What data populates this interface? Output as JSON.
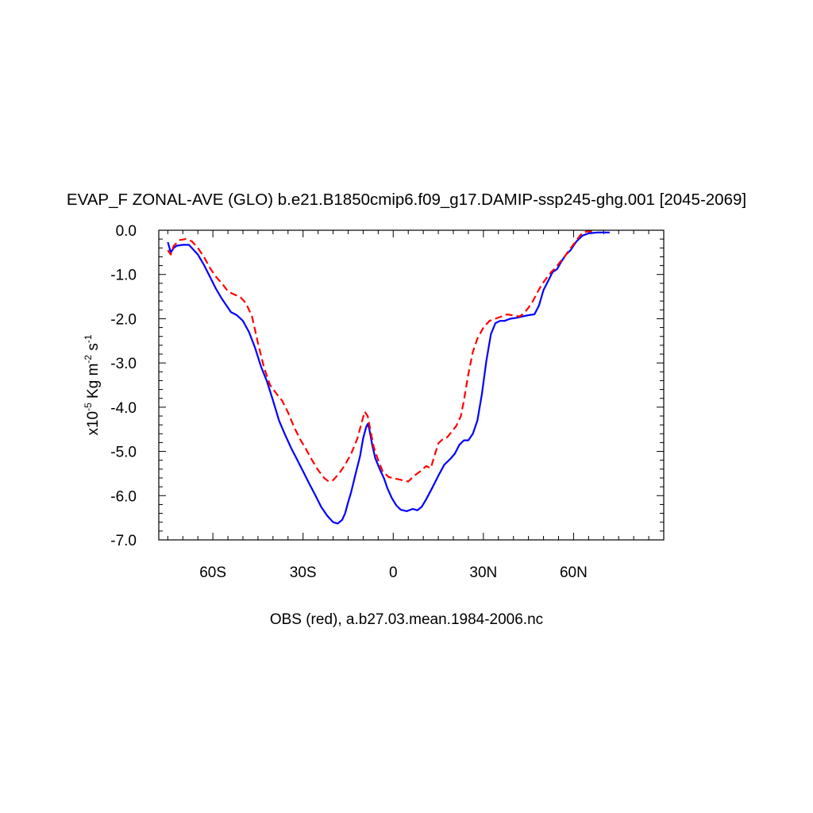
{
  "chart_data": {
    "type": "line",
    "title": "EVAP_F ZONAL-AVE (GLO) b.e21.B1850cmip6.f09_g17.DAMIP-ssp245-ghg.001 [2045-2069]",
    "ylabel": {
      "prefix": "x10",
      "exp1": "-5",
      "unit1": " Kg m",
      "exp2": "-2",
      "unit2": " s",
      "exp3": "-1"
    },
    "xlabel": "OBS (red), a.b27.03.mean.1984-2006.nc",
    "xlim": [
      -78,
      90
    ],
    "ylim": [
      -7.0,
      0.0
    ],
    "xticks": [
      {
        "value": -60,
        "label": "60S"
      },
      {
        "value": -30,
        "label": "30S"
      },
      {
        "value": 0,
        "label": "0"
      },
      {
        "value": 30,
        "label": "30N"
      },
      {
        "value": 60,
        "label": "60N"
      }
    ],
    "yticks": [
      {
        "value": 0.0,
        "label": "0.0"
      },
      {
        "value": -1.0,
        "label": "-1.0"
      },
      {
        "value": -2.0,
        "label": "-2.0"
      },
      {
        "value": -3.0,
        "label": "-3.0"
      },
      {
        "value": -4.0,
        "label": "-4.0"
      },
      {
        "value": -5.0,
        "label": "-5.0"
      },
      {
        "value": -6.0,
        "label": "-6.0"
      },
      {
        "value": -7.0,
        "label": "-7.0"
      }
    ],
    "series": [
      {
        "color": "#0000ff",
        "dash": "solid",
        "points": [
          [
            -75,
            -0.27
          ],
          [
            -74,
            -0.5
          ],
          [
            -73,
            -0.4
          ],
          [
            -72,
            -0.35
          ],
          [
            -70,
            -0.33
          ],
          [
            -68,
            -0.33
          ],
          [
            -67,
            -0.4
          ],
          [
            -65,
            -0.55
          ],
          [
            -63,
            -0.78
          ],
          [
            -61,
            -1.05
          ],
          [
            -59,
            -1.32
          ],
          [
            -57,
            -1.55
          ],
          [
            -55,
            -1.75
          ],
          [
            -54,
            -1.85
          ],
          [
            -52,
            -1.92
          ],
          [
            -50,
            -2.05
          ],
          [
            -48,
            -2.3
          ],
          [
            -46,
            -2.65
          ],
          [
            -44,
            -3.08
          ],
          [
            -42,
            -3.42
          ],
          [
            -40,
            -3.85
          ],
          [
            -38,
            -4.3
          ],
          [
            -36,
            -4.62
          ],
          [
            -34,
            -4.92
          ],
          [
            -32,
            -5.18
          ],
          [
            -30,
            -5.45
          ],
          [
            -28,
            -5.72
          ],
          [
            -26,
            -5.98
          ],
          [
            -24,
            -6.25
          ],
          [
            -22,
            -6.45
          ],
          [
            -20,
            -6.6
          ],
          [
            -18.5,
            -6.63
          ],
          [
            -17,
            -6.55
          ],
          [
            -16,
            -6.4
          ],
          [
            -15,
            -6.15
          ],
          [
            -14,
            -5.92
          ],
          [
            -12.5,
            -5.5
          ],
          [
            -11,
            -5.1
          ],
          [
            -10,
            -4.7
          ],
          [
            -9,
            -4.45
          ],
          [
            -8.5,
            -4.38
          ],
          [
            -8,
            -4.48
          ],
          [
            -7,
            -4.85
          ],
          [
            -6,
            -5.15
          ],
          [
            -4.5,
            -5.4
          ],
          [
            -3,
            -5.62
          ],
          [
            -2,
            -5.82
          ],
          [
            -0.5,
            -6.05
          ],
          [
            1,
            -6.22
          ],
          [
            2.5,
            -6.32
          ],
          [
            4.5,
            -6.35
          ],
          [
            6.5,
            -6.3
          ],
          [
            8,
            -6.33
          ],
          [
            9.5,
            -6.25
          ],
          [
            11,
            -6.08
          ],
          [
            13,
            -5.82
          ],
          [
            15,
            -5.55
          ],
          [
            17,
            -5.3
          ],
          [
            19,
            -5.17
          ],
          [
            20.5,
            -5.05
          ],
          [
            22,
            -4.85
          ],
          [
            23.5,
            -4.75
          ],
          [
            25,
            -4.75
          ],
          [
            26.5,
            -4.6
          ],
          [
            28,
            -4.3
          ],
          [
            29.5,
            -3.7
          ],
          [
            31,
            -2.95
          ],
          [
            32.5,
            -2.35
          ],
          [
            34,
            -2.1
          ],
          [
            35.5,
            -2.05
          ],
          [
            37,
            -2.05
          ],
          [
            39,
            -2.0
          ],
          [
            41,
            -1.98
          ],
          [
            43,
            -1.95
          ],
          [
            45,
            -1.92
          ],
          [
            47,
            -1.9
          ],
          [
            48.5,
            -1.7
          ],
          [
            50,
            -1.35
          ],
          [
            51.5,
            -1.15
          ],
          [
            53,
            -0.95
          ],
          [
            54.5,
            -0.88
          ],
          [
            56,
            -0.7
          ],
          [
            57.5,
            -0.55
          ],
          [
            59,
            -0.45
          ],
          [
            61,
            -0.25
          ],
          [
            63,
            -0.12
          ],
          [
            65,
            -0.07
          ],
          [
            68,
            -0.05
          ],
          [
            72,
            -0.05
          ]
        ]
      },
      {
        "color": "#ff0000",
        "dash": "dashed",
        "points": [
          [
            -75,
            -0.45
          ],
          [
            -74,
            -0.55
          ],
          [
            -73,
            -0.35
          ],
          [
            -71,
            -0.22
          ],
          [
            -69,
            -0.2
          ],
          [
            -67,
            -0.25
          ],
          [
            -65,
            -0.4
          ],
          [
            -63,
            -0.6
          ],
          [
            -61,
            -0.85
          ],
          [
            -59,
            -1.05
          ],
          [
            -57,
            -1.2
          ],
          [
            -55,
            -1.38
          ],
          [
            -53,
            -1.45
          ],
          [
            -51,
            -1.5
          ],
          [
            -49,
            -1.65
          ],
          [
            -47,
            -1.95
          ],
          [
            -45,
            -2.55
          ],
          [
            -43,
            -3.1
          ],
          [
            -41,
            -3.5
          ],
          [
            -39,
            -3.68
          ],
          [
            -37,
            -3.85
          ],
          [
            -35,
            -4.12
          ],
          [
            -33,
            -4.45
          ],
          [
            -31,
            -4.72
          ],
          [
            -29,
            -4.95
          ],
          [
            -27,
            -5.2
          ],
          [
            -25,
            -5.42
          ],
          [
            -23,
            -5.6
          ],
          [
            -21.5,
            -5.68
          ],
          [
            -20,
            -5.65
          ],
          [
            -18,
            -5.5
          ],
          [
            -16,
            -5.3
          ],
          [
            -14,
            -5.05
          ],
          [
            -12,
            -4.72
          ],
          [
            -10.5,
            -4.35
          ],
          [
            -9.5,
            -4.1
          ],
          [
            -8.5,
            -4.2
          ],
          [
            -7.5,
            -4.55
          ],
          [
            -6.5,
            -4.9
          ],
          [
            -5,
            -5.2
          ],
          [
            -3.5,
            -5.45
          ],
          [
            -1.5,
            -5.58
          ],
          [
            1,
            -5.62
          ],
          [
            3,
            -5.65
          ],
          [
            5,
            -5.68
          ],
          [
            7,
            -5.55
          ],
          [
            9,
            -5.45
          ],
          [
            11,
            -5.33
          ],
          [
            12.5,
            -5.38
          ],
          [
            13.5,
            -5.15
          ],
          [
            15,
            -4.82
          ],
          [
            16.5,
            -4.72
          ],
          [
            18,
            -4.68
          ],
          [
            19.5,
            -4.55
          ],
          [
            21,
            -4.42
          ],
          [
            22.5,
            -4.2
          ],
          [
            23.5,
            -3.85
          ],
          [
            25,
            -3.25
          ],
          [
            26.5,
            -2.75
          ],
          [
            28,
            -2.45
          ],
          [
            30,
            -2.2
          ],
          [
            32,
            -2.05
          ],
          [
            34,
            -2.0
          ],
          [
            36,
            -1.95
          ],
          [
            38,
            -1.9
          ],
          [
            40,
            -1.93
          ],
          [
            42,
            -1.95
          ],
          [
            43.5,
            -1.88
          ],
          [
            45,
            -1.75
          ],
          [
            46.5,
            -1.6
          ],
          [
            48,
            -1.4
          ],
          [
            49.5,
            -1.22
          ],
          [
            51,
            -1.08
          ],
          [
            52.5,
            -0.95
          ],
          [
            54,
            -0.85
          ],
          [
            55.5,
            -0.72
          ],
          [
            57,
            -0.6
          ],
          [
            58.5,
            -0.45
          ],
          [
            60,
            -0.32
          ],
          [
            61.5,
            -0.18
          ],
          [
            63,
            -0.05
          ],
          [
            65,
            -0.02
          ],
          [
            67,
            -0.04
          ]
        ]
      }
    ]
  }
}
